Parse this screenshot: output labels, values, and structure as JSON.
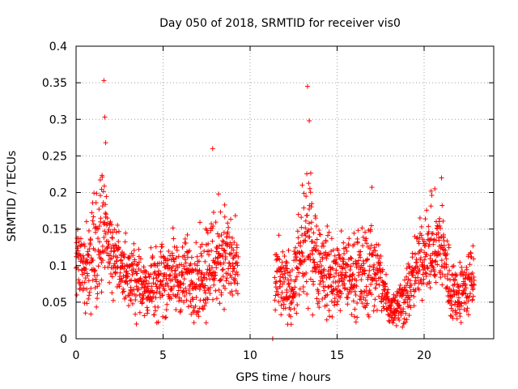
{
  "chart_data": {
    "type": "scatter",
    "title": "Day 050 of 2018, SRMTID for receiver vis0",
    "xlabel": "GPS time / hours",
    "ylabel": "SRMTID / TECUs",
    "xlim": [
      0,
      24
    ],
    "ylim": [
      0,
      0.4
    ],
    "xticks": [
      0,
      5,
      10,
      15,
      20
    ],
    "xtick_labels": [
      "0",
      "5",
      "10",
      "15",
      "20"
    ],
    "yticks": [
      0,
      0.05,
      0.1,
      0.15,
      0.2,
      0.25,
      0.3,
      0.35,
      0.4
    ],
    "ytick_labels": [
      "0",
      "0.05",
      "0.1",
      "0.15",
      "0.2",
      "0.25",
      "0.3",
      "0.35",
      "0.4"
    ],
    "grid": true,
    "marker": "plus",
    "color": "#ff0000",
    "data_gaps_hours": [
      [
        9.3,
        11.3
      ]
    ],
    "notable_points": [
      {
        "x": 1.6,
        "y": 0.353
      },
      {
        "x": 1.65,
        "y": 0.303
      },
      {
        "x": 1.7,
        "y": 0.268
      },
      {
        "x": 7.85,
        "y": 0.26
      },
      {
        "x": 11.3,
        "y": 0.0
      },
      {
        "x": 13.3,
        "y": 0.345
      },
      {
        "x": 13.4,
        "y": 0.298
      },
      {
        "x": 17.0,
        "y": 0.207
      },
      {
        "x": 20.4,
        "y": 0.202
      },
      {
        "x": 21.0,
        "y": 0.22
      }
    ],
    "envelope": {
      "x": [
        0,
        0.5,
        1.0,
        1.5,
        2.0,
        2.5,
        3.0,
        3.5,
        4.0,
        4.5,
        5.0,
        5.5,
        6.0,
        6.5,
        7.0,
        7.5,
        8.0,
        8.5,
        9.0,
        9.3,
        11.3,
        11.5,
        12.0,
        12.5,
        13.0,
        13.5,
        14.0,
        14.5,
        15.0,
        15.5,
        16.0,
        16.5,
        17.0,
        17.5,
        18.0,
        18.5,
        19.0,
        19.5,
        20.0,
        20.5,
        21.0,
        21.5,
        22.0,
        22.5,
        22.9
      ],
      "y_mid": [
        0.11,
        0.1,
        0.12,
        0.15,
        0.13,
        0.1,
        0.08,
        0.08,
        0.07,
        0.08,
        0.085,
        0.09,
        0.08,
        0.09,
        0.08,
        0.1,
        0.11,
        0.12,
        0.1,
        0.09,
        0.06,
        0.08,
        0.07,
        0.07,
        0.12,
        0.14,
        0.1,
        0.09,
        0.08,
        0.09,
        0.085,
        0.09,
        0.1,
        0.08,
        0.04,
        0.045,
        0.06,
        0.09,
        0.12,
        0.12,
        0.13,
        0.07,
        0.06,
        0.075,
        0.08
      ],
      "y_spread": [
        0.04,
        0.05,
        0.06,
        0.07,
        0.05,
        0.04,
        0.035,
        0.035,
        0.03,
        0.04,
        0.04,
        0.04,
        0.035,
        0.04,
        0.04,
        0.05,
        0.06,
        0.05,
        0.045,
        0.04,
        0.03,
        0.04,
        0.035,
        0.035,
        0.06,
        0.06,
        0.045,
        0.045,
        0.04,
        0.04,
        0.04,
        0.045,
        0.05,
        0.035,
        0.02,
        0.025,
        0.03,
        0.04,
        0.04,
        0.045,
        0.05,
        0.035,
        0.03,
        0.035,
        0.04
      ]
    }
  }
}
